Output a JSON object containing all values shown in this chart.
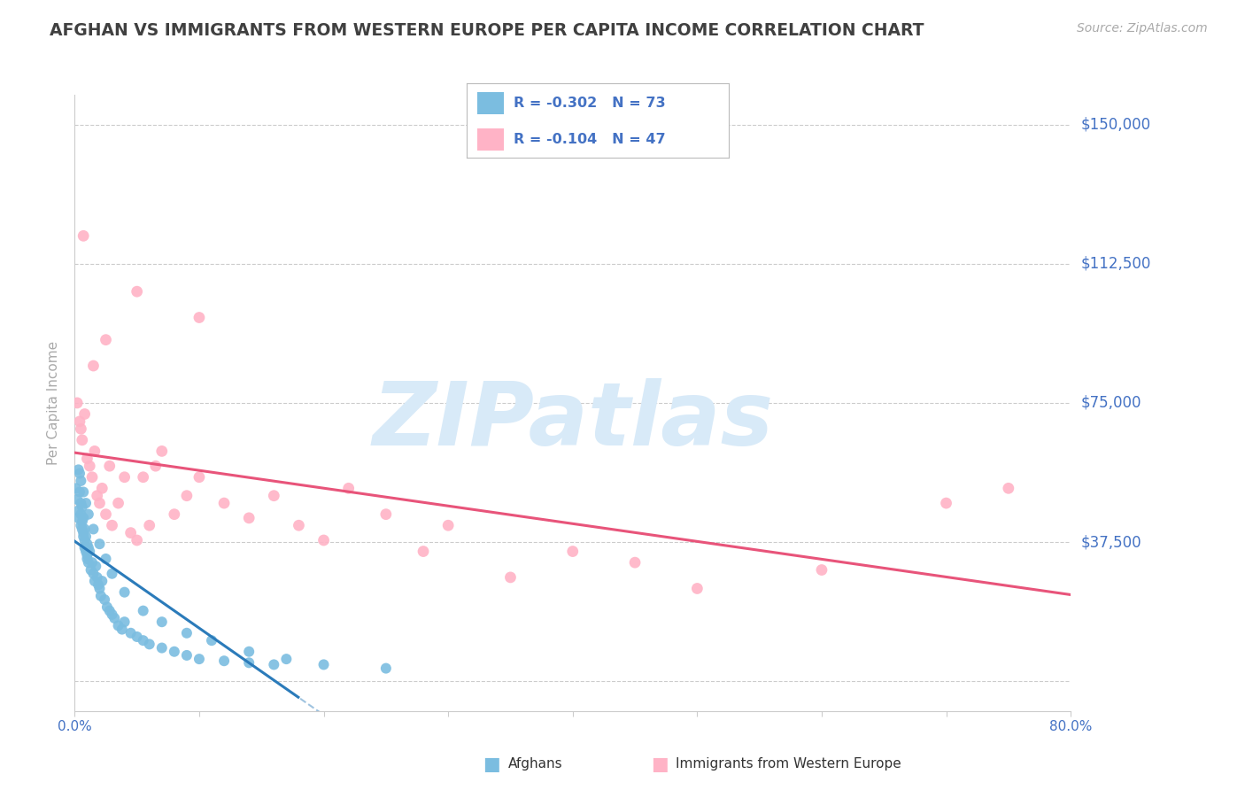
{
  "title": "AFGHAN VS IMMIGRANTS FROM WESTERN EUROPE PER CAPITA INCOME CORRELATION CHART",
  "source_text": "Source: ZipAtlas.com",
  "ylabel": "Per Capita Income",
  "xlim": [
    0.0,
    0.8
  ],
  "ylim": [
    -8000,
    158000
  ],
  "yticks": [
    0,
    37500,
    75000,
    112500,
    150000
  ],
  "ytick_labels": [
    "",
    "$37,500",
    "$75,000",
    "$112,500",
    "$150,000"
  ],
  "xtick_vals": [
    0.0,
    0.1,
    0.2,
    0.3,
    0.4,
    0.5,
    0.6,
    0.7,
    0.8
  ],
  "xtick_labels": [
    "0.0%",
    "",
    "",
    "",
    "",
    "",
    "",
    "",
    "80.0%"
  ],
  "afghan_color": "#7bbde0",
  "western_color": "#ffb3c6",
  "trend_afghan_color": "#2b7bba",
  "trend_western_color": "#e8547a",
  "tick_label_color": "#4472c4",
  "title_color": "#404040",
  "grid_color": "#cccccc",
  "watermark_text": "ZIPatlas",
  "watermark_color": "#d8eaf8",
  "legend_R1": "R = -0.302",
  "legend_N1": "N = 73",
  "legend_R2": "R = -0.104",
  "legend_N2": "N = 47",
  "legend_label1": "Afghans",
  "legend_label2": "Immigrants from Western Europe",
  "afghan_x": [
    0.001,
    0.002,
    0.003,
    0.003,
    0.004,
    0.004,
    0.005,
    0.005,
    0.005,
    0.006,
    0.006,
    0.006,
    0.007,
    0.007,
    0.007,
    0.008,
    0.008,
    0.008,
    0.009,
    0.009,
    0.01,
    0.01,
    0.01,
    0.011,
    0.011,
    0.012,
    0.013,
    0.014,
    0.015,
    0.016,
    0.017,
    0.018,
    0.019,
    0.02,
    0.021,
    0.022,
    0.024,
    0.026,
    0.028,
    0.03,
    0.032,
    0.035,
    0.038,
    0.04,
    0.045,
    0.05,
    0.055,
    0.06,
    0.07,
    0.08,
    0.09,
    0.1,
    0.12,
    0.14,
    0.16,
    0.003,
    0.005,
    0.007,
    0.009,
    0.011,
    0.015,
    0.02,
    0.025,
    0.03,
    0.04,
    0.055,
    0.07,
    0.09,
    0.11,
    0.14,
    0.17,
    0.2,
    0.25
  ],
  "afghan_y": [
    52000,
    49000,
    46000,
    44000,
    51000,
    56000,
    42000,
    48000,
    45000,
    47000,
    43000,
    41000,
    39000,
    44000,
    40000,
    38000,
    36000,
    41000,
    35000,
    39000,
    34000,
    37000,
    33000,
    36000,
    32000,
    35000,
    30000,
    32000,
    29000,
    27000,
    31000,
    28000,
    26000,
    25000,
    23000,
    27000,
    22000,
    20000,
    19000,
    18000,
    17000,
    15000,
    14000,
    16000,
    13000,
    12000,
    11000,
    10000,
    9000,
    8000,
    7000,
    6000,
    5500,
    5000,
    4500,
    57000,
    54000,
    51000,
    48000,
    45000,
    41000,
    37000,
    33000,
    29000,
    24000,
    19000,
    16000,
    13000,
    11000,
    8000,
    6000,
    4500,
    3500
  ],
  "western_x": [
    0.002,
    0.004,
    0.005,
    0.006,
    0.008,
    0.01,
    0.012,
    0.014,
    0.016,
    0.018,
    0.02,
    0.022,
    0.025,
    0.028,
    0.03,
    0.035,
    0.04,
    0.045,
    0.05,
    0.055,
    0.06,
    0.065,
    0.07,
    0.08,
    0.09,
    0.1,
    0.12,
    0.14,
    0.16,
    0.18,
    0.2,
    0.22,
    0.25,
    0.28,
    0.3,
    0.35,
    0.4,
    0.45,
    0.5,
    0.6,
    0.007,
    0.015,
    0.025,
    0.05,
    0.1,
    0.7,
    0.75
  ],
  "western_y": [
    75000,
    70000,
    68000,
    65000,
    72000,
    60000,
    58000,
    55000,
    62000,
    50000,
    48000,
    52000,
    45000,
    58000,
    42000,
    48000,
    55000,
    40000,
    38000,
    55000,
    42000,
    58000,
    62000,
    45000,
    50000,
    55000,
    48000,
    44000,
    50000,
    42000,
    38000,
    52000,
    45000,
    35000,
    42000,
    28000,
    35000,
    32000,
    25000,
    30000,
    120000,
    85000,
    92000,
    105000,
    98000,
    48000,
    52000
  ],
  "trend_split": 0.18
}
